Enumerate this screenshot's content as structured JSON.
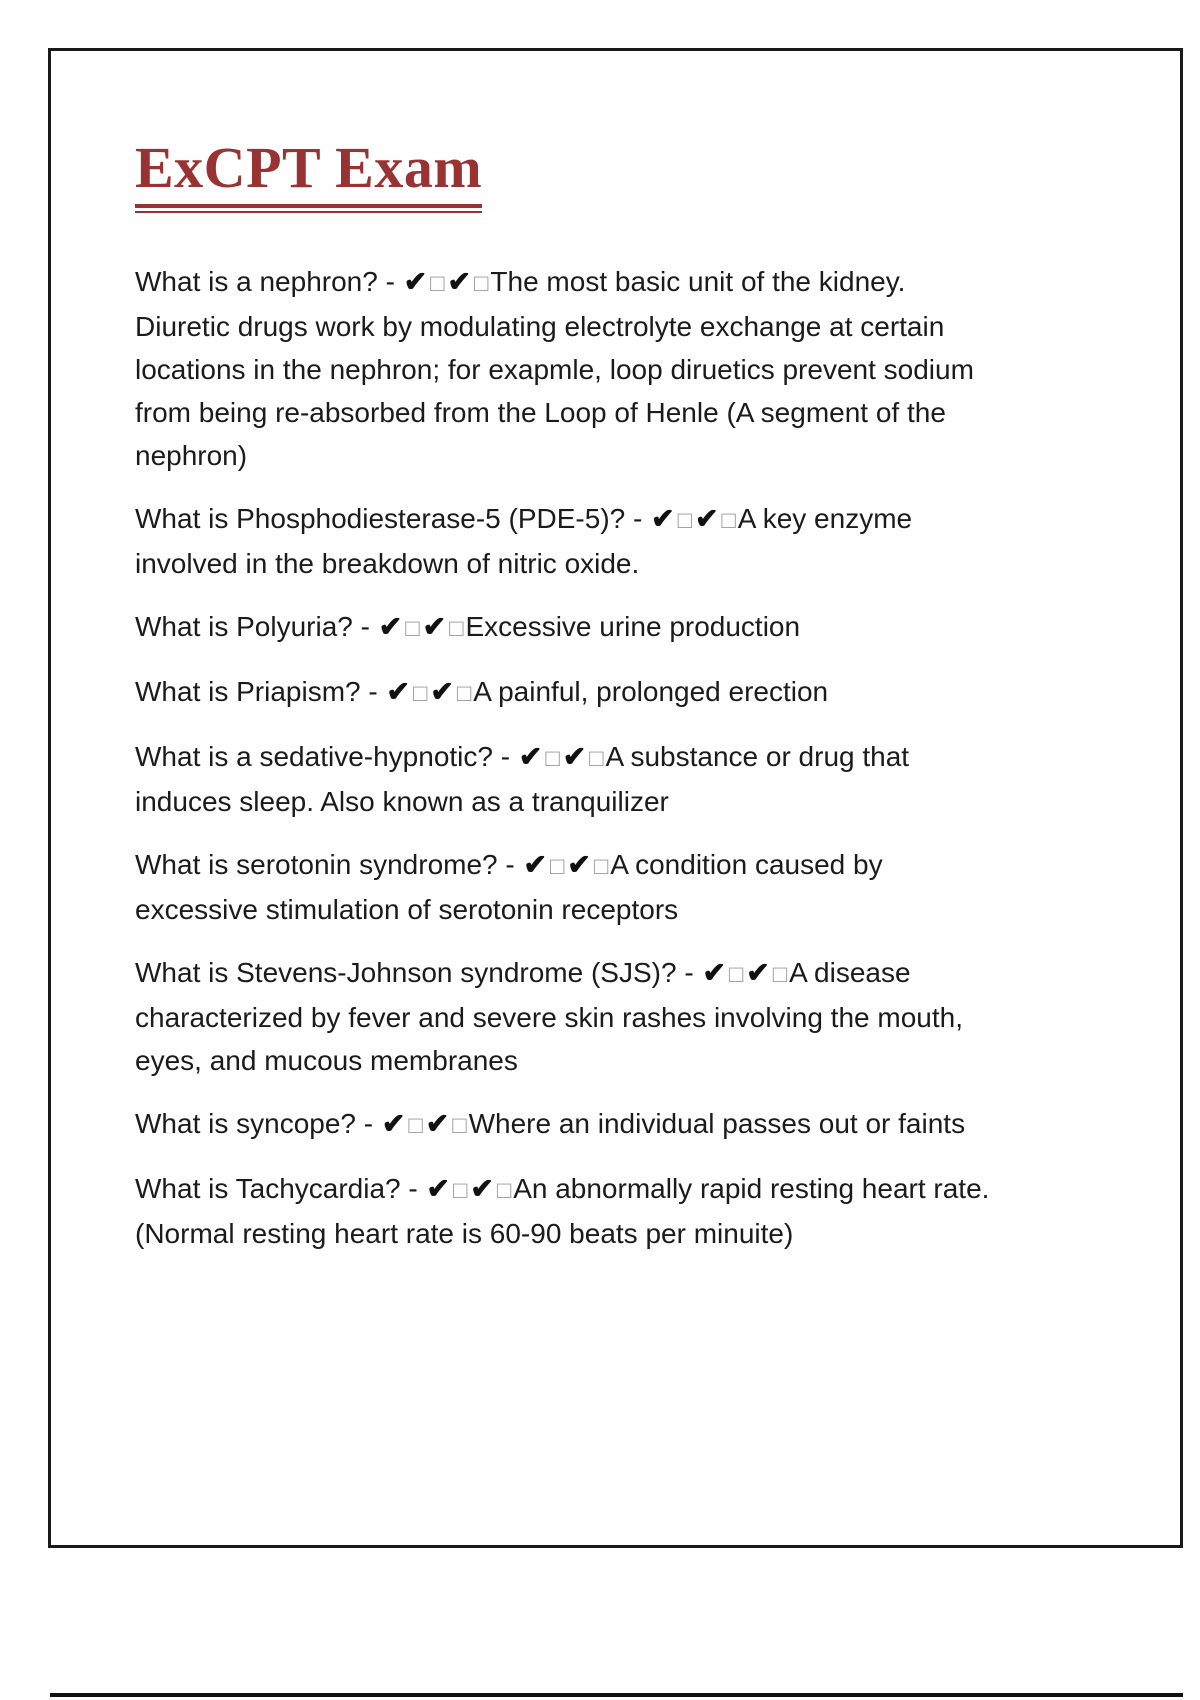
{
  "page": {
    "title": "ExCPT Exam"
  },
  "markers": {
    "check": "✔",
    "box": "□"
  },
  "items": [
    {
      "question": "What is a nephron?",
      "separator": " - ",
      "answer": "The most basic unit of the kidney. Diuretic drugs work by modulating electrolyte exchange at certain locations in the nephron; for exapmle, loop diruetics prevent sodium from being re-absorbed from the Loop of Henle (A segment of the nephron)"
    },
    {
      "question": "What is Phosphodiesterase-5 (PDE-5)?",
      "separator": " - ",
      "answer": "A key enzyme involved in the breakdown of nitric oxide."
    },
    {
      "question": "What is Polyuria?",
      "separator": " - ",
      "answer": "Excessive urine production"
    },
    {
      "question": "What is Priapism?",
      "separator": " - ",
      "answer": "A painful, prolonged erection"
    },
    {
      "question": "What is a sedative-hypnotic?",
      "separator": " - ",
      "answer": "A substance or drug that induces sleep. Also known as a tranquilizer"
    },
    {
      "question": "What is serotonin syndrome?",
      "separator": " - ",
      "answer": "A condition caused by excessive stimulation of serotonin receptors"
    },
    {
      "question": "What is Stevens-Johnson syndrome (SJS)?",
      "separator": " - ",
      "answer": "A disease characterized by fever and severe skin rashes involving the mouth, eyes, and mucous membranes"
    },
    {
      "question": "What is syncope?",
      "separator": " - ",
      "answer": "Where an individual passes out or faints"
    },
    {
      "question": "What is Tachycardia?",
      "separator": " - ",
      "answer": "An abnormally rapid resting heart rate. (Normal resting heart rate is 60-90 beats per minuite)"
    }
  ]
}
